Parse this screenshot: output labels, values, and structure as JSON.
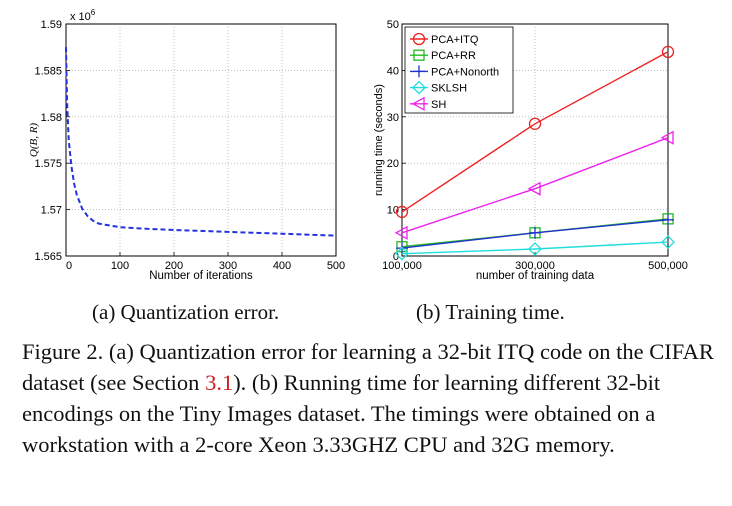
{
  "chart_data": [
    {
      "type": "line",
      "ylabel": "Q(B, R)",
      "xlabel": "Number of iterations",
      "y_multiplier_label": "x 10",
      "y_multiplier_exp": "6",
      "xlim": [
        0,
        500
      ],
      "ylim": [
        1.565,
        1.59
      ],
      "x_ticks": [
        0,
        100,
        200,
        300,
        400,
        500
      ],
      "y_ticks": [
        1.565,
        1.57,
        1.575,
        1.58,
        1.585,
        1.59
      ],
      "x_tick_labels": [
        "0",
        "100",
        "200",
        "300",
        "400",
        "500"
      ],
      "y_tick_labels": [
        "1.565",
        "1.57",
        "1.575",
        "1.58",
        "1.585",
        "1.59"
      ],
      "grid": true,
      "series": [
        {
          "color": "#2233dd",
          "style": "dashed",
          "x": [
            0,
            2,
            5,
            10,
            15,
            20,
            30,
            40,
            50,
            60,
            80,
            100,
            130,
            160,
            200,
            250,
            300,
            350,
            400,
            450,
            500
          ],
          "y": [
            1.5875,
            1.5815,
            1.5775,
            1.5747,
            1.5728,
            1.5716,
            1.5701,
            1.5693,
            1.5688,
            1.5685,
            1.5683,
            1.5681,
            1.568,
            1.5679,
            1.5678,
            1.5677,
            1.5676,
            1.5675,
            1.5674,
            1.5673,
            1.5672
          ]
        }
      ]
    },
    {
      "type": "line",
      "ylabel": "running time (seconds)",
      "xlabel": "number of training data",
      "categories": [
        "100,000",
        "300,000",
        "500,000"
      ],
      "x": [
        100000,
        300000,
        500000
      ],
      "xlim": [
        100000,
        500000
      ],
      "ylim": [
        0,
        50
      ],
      "y_ticks": [
        0,
        10,
        20,
        30,
        40,
        50
      ],
      "y_tick_labels": [
        "0",
        "10",
        "20",
        "30",
        "40",
        "50"
      ],
      "grid": true,
      "legend": "top-left",
      "series": [
        {
          "name": "PCA+ITQ",
          "color": "#ee2222",
          "marker": "circle",
          "values": [
            9.5,
            28.5,
            44
          ]
        },
        {
          "name": "PCA+RR",
          "color": "#22bb22",
          "marker": "square",
          "values": [
            2,
            5,
            8
          ]
        },
        {
          "name": "PCA+Nonorth",
          "color": "#2233cc",
          "marker": "plus",
          "values": [
            1.7,
            5,
            7.8
          ]
        },
        {
          "name": "SKLSH",
          "color": "#22dddd",
          "marker": "diamond",
          "values": [
            0.5,
            1.5,
            3
          ]
        },
        {
          "name": "SH",
          "color": "#ee22ee",
          "marker": "triangle-left",
          "values": [
            5,
            14.5,
            25.5
          ]
        }
      ]
    }
  ],
  "subcaptions": {
    "a": "(a) Quantization error.",
    "b": "(b) Training time."
  },
  "caption": {
    "part1": "Figure 2. (a) Quantization error for learning a 32-bit ITQ code on the CIFAR dataset (see Section ",
    "ref": "3.1",
    "part2": "). (b) Running time for learning different 32-bit encodings on the Tiny Images dataset. The timings were obtained on a workstation with a 2-core Xeon 3.33GHZ CPU and 32G memory."
  }
}
